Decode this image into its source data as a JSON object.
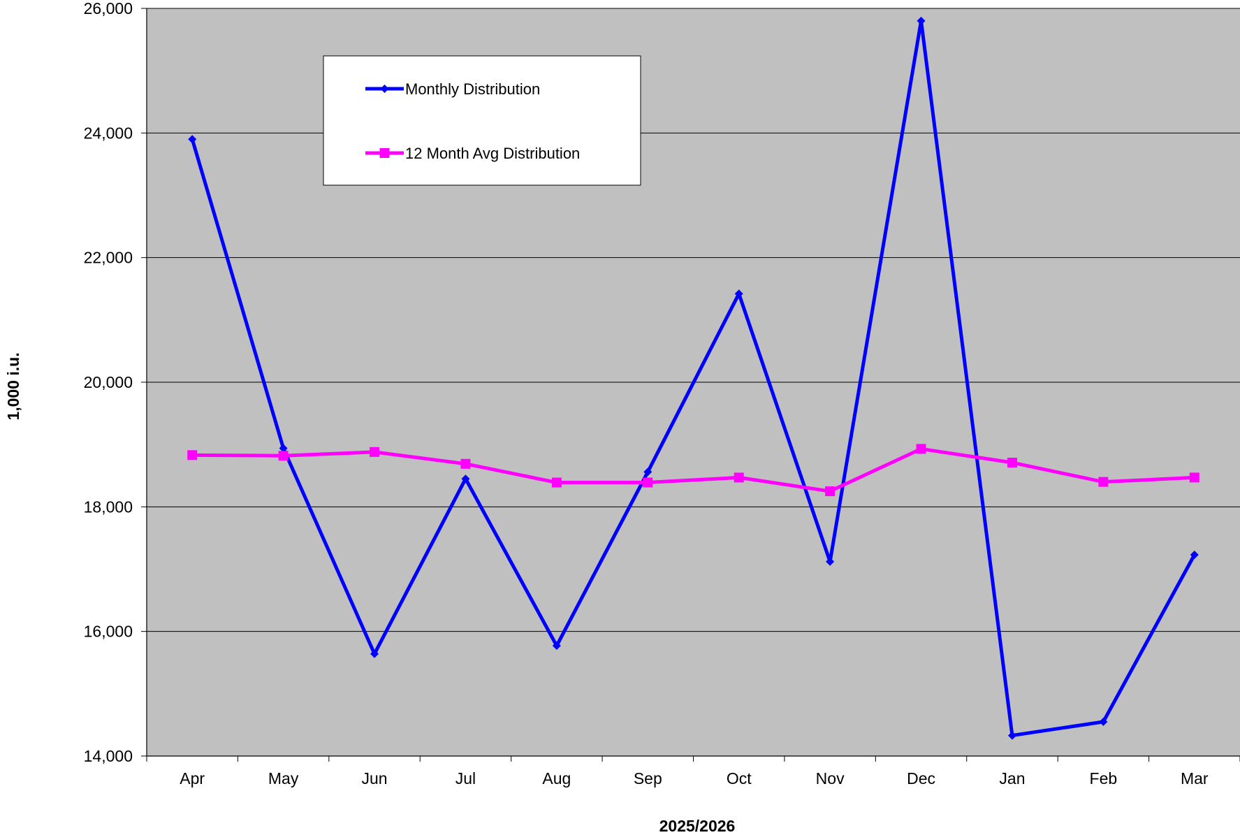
{
  "chart_data": {
    "type": "line",
    "title": "",
    "xlabel": "2025/2026",
    "ylabel": "1,000 i.u.",
    "categories": [
      "Apr",
      "May",
      "Jun",
      "Jul",
      "Aug",
      "Sep",
      "Oct",
      "Nov",
      "Dec",
      "Jan",
      "Feb",
      "Mar"
    ],
    "ylim": [
      14000,
      26000
    ],
    "yticks": [
      14000,
      16000,
      18000,
      20000,
      22000,
      24000,
      26000
    ],
    "ytick_labels": [
      "14,000",
      "16,000",
      "18,000",
      "20,000",
      "22,000",
      "24,000",
      "26,000"
    ],
    "grid": true,
    "plot_background": "#c0c0c0",
    "legend_position": "top-left",
    "series": [
      {
        "name": "Monthly Distribution",
        "color": "#0000ff",
        "marker": "diamond",
        "values": [
          23900,
          18940,
          15640,
          18450,
          15770,
          18560,
          21420,
          17120,
          25800,
          14330,
          14550,
          17230
        ]
      },
      {
        "name": "12 Month Avg Distribution",
        "color": "#ff00ff",
        "marker": "square",
        "values": [
          18830,
          18820,
          18880,
          18690,
          18390,
          18390,
          18470,
          18250,
          18930,
          18710,
          18400,
          18470
        ]
      }
    ]
  }
}
